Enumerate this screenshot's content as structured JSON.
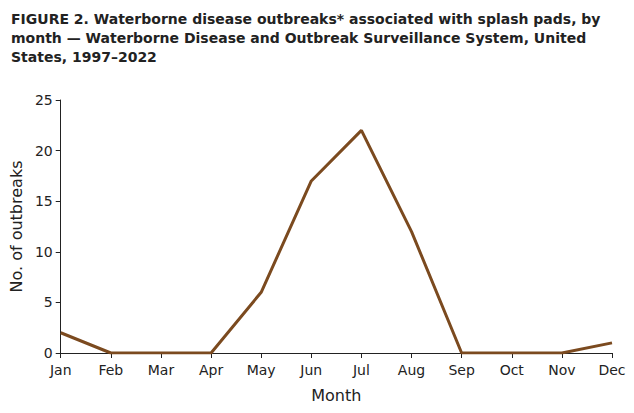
{
  "chart_data": {
    "type": "line",
    "title": "FIGURE 2. Waterborne disease outbreaks* associated with splash pads, by month — Waterborne Disease and Outbreak Surveillance System, United States, 1997–2022",
    "x_label": "Month",
    "y_label": "No. of outbreaks",
    "categories": [
      "Jan",
      "Feb",
      "Mar",
      "Apr",
      "May",
      "Jun",
      "Jul",
      "Aug",
      "Sep",
      "Oct",
      "Nov",
      "Dec"
    ],
    "values": [
      2,
      0,
      0,
      0,
      6,
      17,
      22,
      12,
      0,
      0,
      0,
      1
    ],
    "color": "#7b4a1f",
    "ylim": [
      0,
      25
    ],
    "yticks": [
      0,
      5,
      10,
      15,
      20,
      25
    ],
    "grid": false
  }
}
